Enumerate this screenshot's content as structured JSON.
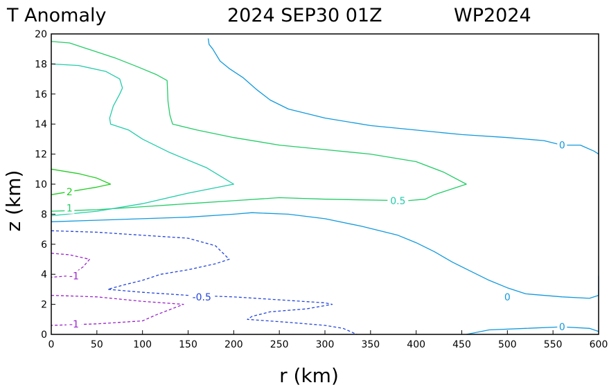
{
  "header": {
    "title": "T Anomaly",
    "datetime": "2024 SEP30 01Z",
    "storm_id": "WP2024"
  },
  "chart_data": {
    "type": "contour",
    "xlabel": "r (km)",
    "ylabel": "z (km)",
    "xlim": [
      0,
      600
    ],
    "ylim": [
      0,
      20
    ],
    "x_ticks": [
      "0",
      "50",
      "100",
      "150",
      "200",
      "250",
      "300",
      "350",
      "400",
      "450",
      "500",
      "550",
      "600"
    ],
    "y_ticks": [
      "0",
      "2",
      "4",
      "6",
      "8",
      "10",
      "12",
      "14",
      "16",
      "18",
      "20"
    ],
    "contours": [
      {
        "level": "2",
        "color": "#22cc22",
        "dashed": false,
        "points": [
          [
            0,
            11.0
          ],
          [
            30,
            10.7
          ],
          [
            50,
            10.4
          ],
          [
            65,
            10.0
          ],
          [
            50,
            9.8
          ],
          [
            30,
            9.6
          ],
          [
            0,
            9.3
          ]
        ],
        "label_at": [
          20,
          9.5
        ]
      },
      {
        "level": "1",
        "color": "#22cc66",
        "dashed": false,
        "points": [
          [
            0,
            19.5
          ],
          [
            20,
            19.4
          ],
          [
            45,
            18.9
          ],
          [
            70,
            18.4
          ],
          [
            95,
            17.8
          ],
          [
            115,
            17.3
          ],
          [
            127,
            16.9
          ],
          [
            128,
            15.5
          ],
          [
            130,
            14.6
          ],
          [
            133,
            14.0
          ],
          [
            160,
            13.6
          ],
          [
            200,
            13.1
          ],
          [
            250,
            12.6
          ],
          [
            300,
            12.3
          ],
          [
            350,
            12.0
          ],
          [
            400,
            11.5
          ],
          [
            430,
            10.8
          ],
          [
            455,
            10.0
          ],
          [
            420,
            9.3
          ],
          [
            410,
            9.0
          ],
          [
            390,
            8.9
          ],
          [
            300,
            9.0
          ],
          [
            250,
            9.1
          ],
          [
            200,
            8.9
          ],
          [
            150,
            8.7
          ],
          [
            100,
            8.5
          ],
          [
            50,
            8.3
          ],
          [
            0,
            8.2
          ]
        ],
        "label_at": [
          20,
          8.4
        ]
      },
      {
        "level": "0.5",
        "color": "#22ccaa",
        "dashed": false,
        "points": [
          [
            0,
            18.0
          ],
          [
            30,
            17.9
          ],
          [
            60,
            17.5
          ],
          [
            75,
            17.0
          ],
          [
            78,
            16.4
          ],
          [
            75,
            16.0
          ],
          [
            68,
            15.2
          ],
          [
            64,
            14.4
          ],
          [
            65,
            14.0
          ],
          [
            85,
            13.6
          ],
          [
            100,
            13.0
          ],
          [
            130,
            12.1
          ],
          [
            170,
            11.1
          ],
          [
            200,
            10.0
          ],
          [
            150,
            9.4
          ],
          [
            100,
            8.7
          ],
          [
            50,
            8.2
          ],
          [
            0,
            7.9
          ]
        ],
        "label_at": [
          380,
          8.9
        ]
      },
      {
        "level": "0",
        "color": "#1199dd",
        "dashed": false,
        "points": [
          [
            172,
            19.7
          ],
          [
            173,
            19.3
          ],
          [
            177,
            19.0
          ],
          [
            185,
            18.2
          ],
          [
            195,
            17.7
          ],
          [
            210,
            17.1
          ],
          [
            225,
            16.3
          ],
          [
            240,
            15.6
          ],
          [
            260,
            15.0
          ],
          [
            300,
            14.4
          ],
          [
            350,
            13.9
          ],
          [
            400,
            13.6
          ],
          [
            450,
            13.3
          ],
          [
            500,
            13.1
          ],
          [
            540,
            12.9
          ],
          [
            560,
            12.6
          ],
          [
            580,
            12.6
          ],
          [
            595,
            12.2
          ],
          [
            600,
            12.0
          ]
        ],
        "label_at": [
          560,
          12.6
        ]
      },
      {
        "level": "0",
        "color": "#1199dd",
        "dashed": false,
        "points": [
          [
            0,
            7.5
          ],
          [
            50,
            7.6
          ],
          [
            100,
            7.7
          ],
          [
            150,
            7.8
          ],
          [
            200,
            8.0
          ],
          [
            220,
            8.1
          ],
          [
            260,
            8.0
          ],
          [
            300,
            7.7
          ],
          [
            340,
            7.2
          ],
          [
            380,
            6.6
          ],
          [
            400,
            6.1
          ],
          [
            420,
            5.5
          ],
          [
            440,
            4.8
          ],
          [
            460,
            4.2
          ],
          [
            480,
            3.6
          ],
          [
            500,
            3.1
          ],
          [
            520,
            2.7
          ],
          [
            560,
            2.5
          ],
          [
            590,
            2.4
          ],
          [
            600,
            2.6
          ],
          [
            600,
            3.9
          ]
        ],
        "label_at": [
          500,
          2.5
        ]
      },
      {
        "level": "0",
        "color": "#1199dd",
        "dashed": false,
        "points": [
          [
            455,
            0.0
          ],
          [
            480,
            0.3
          ],
          [
            520,
            0.4
          ],
          [
            560,
            0.5
          ],
          [
            590,
            0.4
          ],
          [
            600,
            0.2
          ]
        ],
        "label_at": [
          560,
          0.5
        ]
      },
      {
        "level": "-0.5",
        "color": "#2244dd",
        "dashed": true,
        "points": [
          [
            0,
            6.9
          ],
          [
            50,
            6.8
          ],
          [
            100,
            6.6
          ],
          [
            150,
            6.4
          ],
          [
            180,
            5.9
          ],
          [
            195,
            5.0
          ],
          [
            180,
            4.7
          ],
          [
            150,
            4.3
          ],
          [
            120,
            4.0
          ],
          [
            100,
            3.6
          ],
          [
            80,
            3.3
          ],
          [
            62,
            3.0
          ],
          [
            100,
            2.8
          ],
          [
            150,
            2.6
          ],
          [
            200,
            2.5
          ],
          [
            250,
            2.3
          ],
          [
            300,
            2.1
          ],
          [
            308,
            2.0
          ],
          [
            280,
            1.7
          ],
          [
            240,
            1.5
          ],
          [
            220,
            1.2
          ],
          [
            215,
            1.0
          ],
          [
            260,
            0.8
          ],
          [
            300,
            0.6
          ],
          [
            320,
            0.4
          ],
          [
            335,
            0.0
          ]
        ],
        "label_at": [
          165,
          2.5
        ]
      },
      {
        "level": "-1",
        "color": "#9922cc",
        "dashed": true,
        "points": [
          [
            0,
            5.4
          ],
          [
            20,
            5.3
          ],
          [
            42,
            5.0
          ],
          [
            35,
            4.5
          ],
          [
            28,
            4.2
          ],
          [
            20,
            3.9
          ],
          [
            0,
            3.8
          ]
        ],
        "label_at": [
          25,
          3.9
        ]
      },
      {
        "level": "-1",
        "color": "#9922cc",
        "dashed": true,
        "points": [
          [
            0,
            2.6
          ],
          [
            50,
            2.5
          ],
          [
            100,
            2.2
          ],
          [
            145,
            2.0
          ],
          [
            115,
            1.3
          ],
          [
            100,
            0.9
          ],
          [
            50,
            0.7
          ],
          [
            0,
            0.6
          ]
        ],
        "label_at": [
          25,
          0.7
        ]
      }
    ]
  }
}
